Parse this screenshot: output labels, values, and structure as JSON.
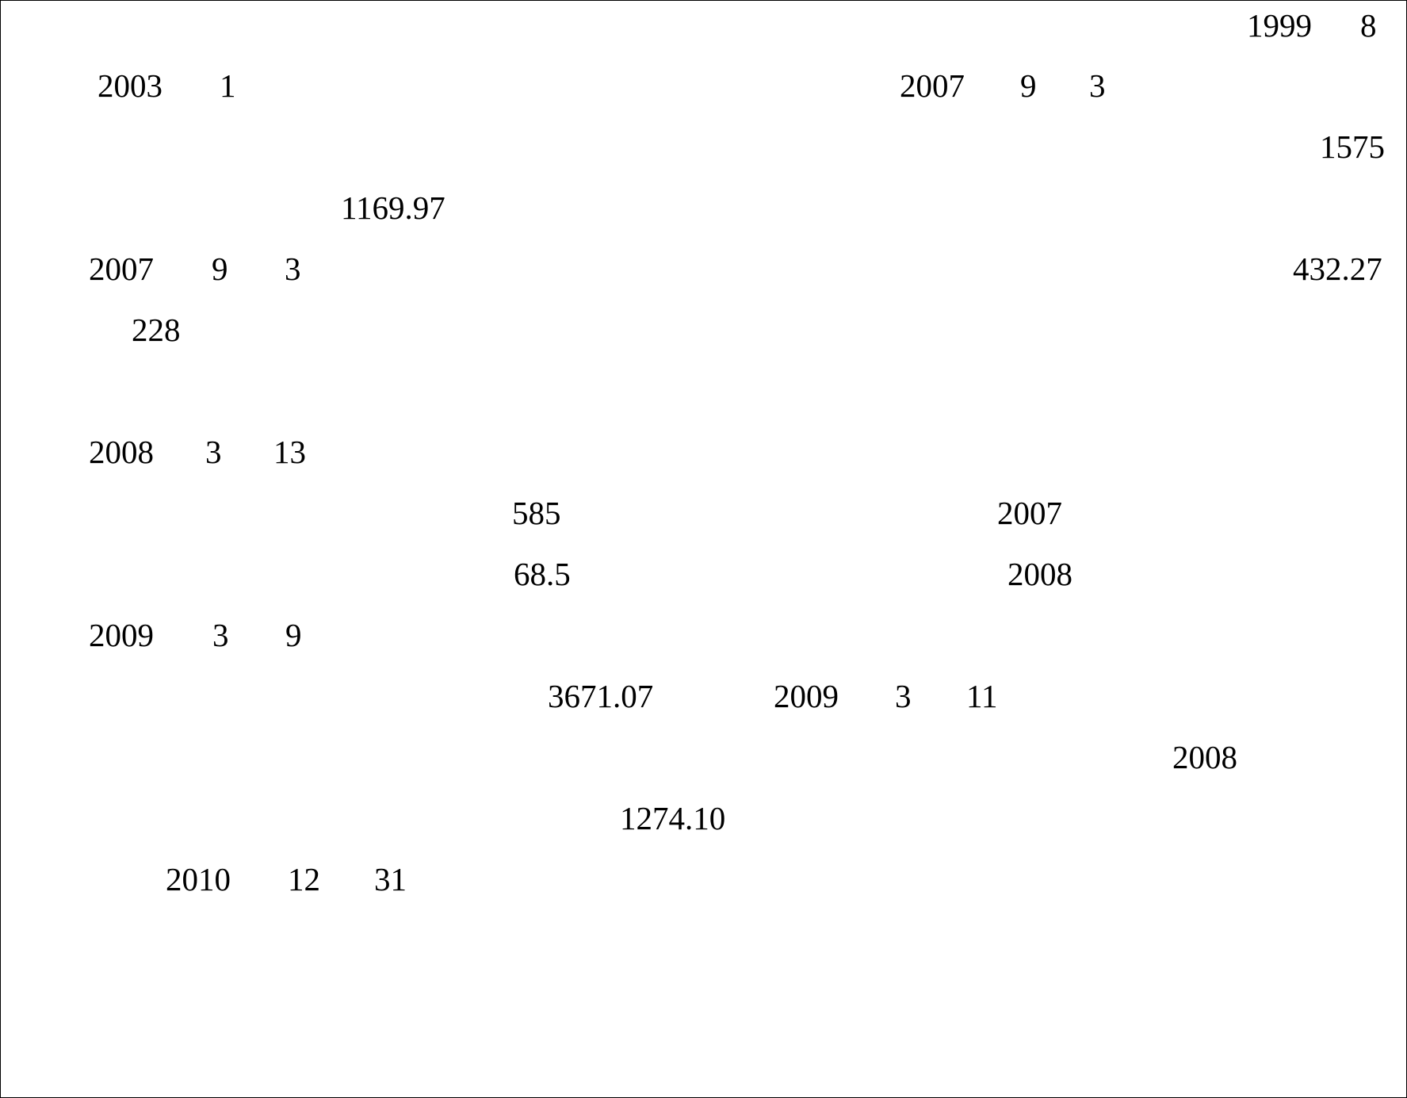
{
  "lines": [
    [
      "1999",
      "8"
    ],
    [
      "2003",
      "1",
      "2007",
      "9",
      "3"
    ],
    [
      "1575"
    ],
    [
      "1169.97"
    ],
    [
      "2007",
      "9",
      "3",
      "432.27"
    ],
    [
      "228"
    ],
    [
      "2008",
      "3",
      "13"
    ],
    [
      "585",
      "2007"
    ],
    [
      "68.5",
      "2008"
    ],
    [
      "2009",
      "3",
      "9"
    ],
    [
      "3671.07",
      "2009",
      "3",
      "11"
    ],
    [
      "2008"
    ],
    [
      "1274.10"
    ],
    [
      "2010",
      "12",
      "31"
    ]
  ]
}
